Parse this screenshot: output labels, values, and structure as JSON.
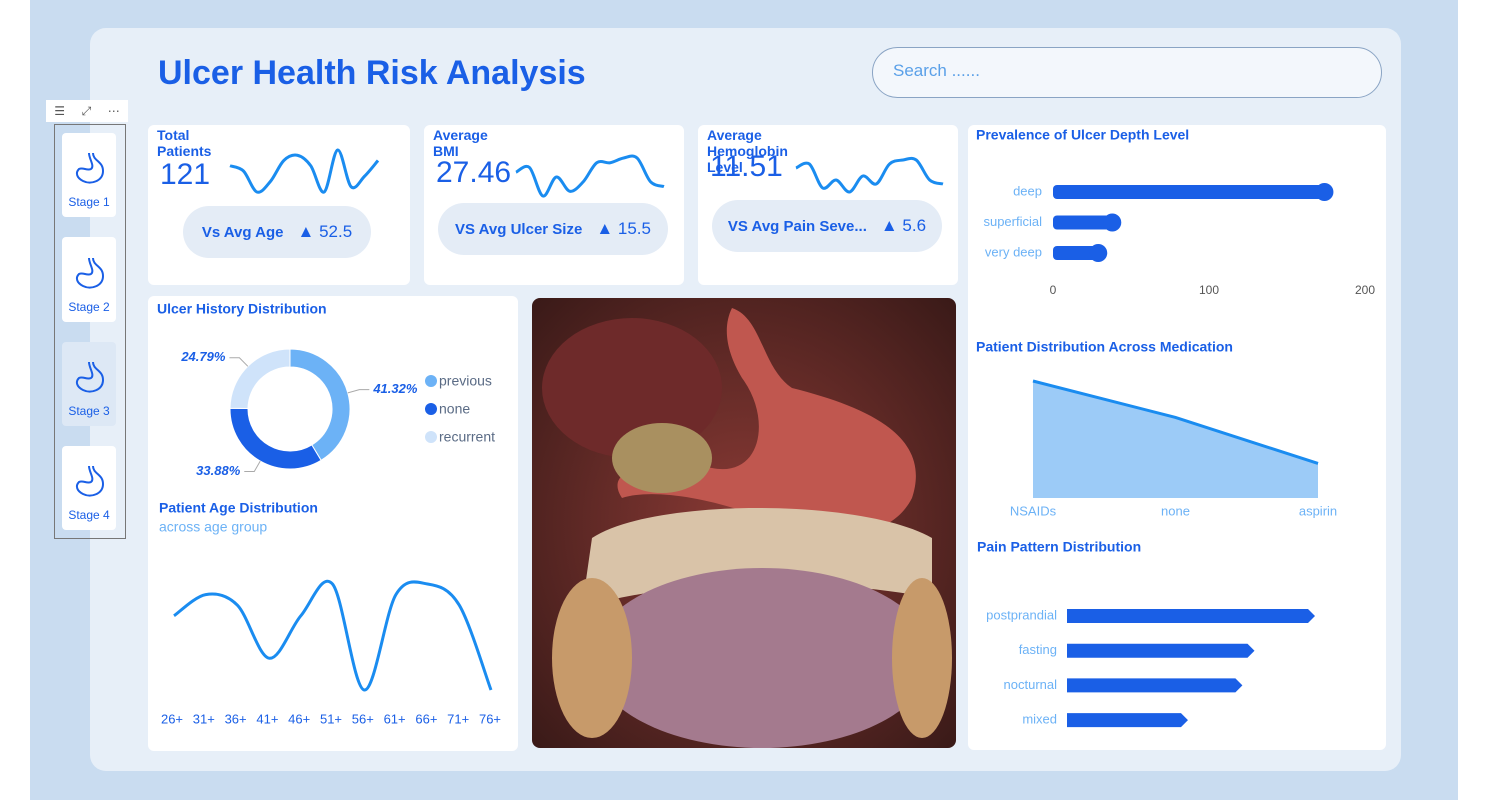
{
  "header": {
    "title": "Ulcer Health Risk Analysis",
    "search_placeholder": "Search ......"
  },
  "nav": {
    "stages": [
      "Stage 1",
      "Stage 2",
      "Stage 3",
      "Stage 4"
    ]
  },
  "kpis": [
    {
      "title": "Total Patients",
      "value": 121,
      "compare": "Vs Avg Age",
      "delta": "▲ 52.5",
      "trend": [
        6,
        5,
        1,
        3,
        7,
        8,
        6,
        1,
        9,
        2,
        4,
        7
      ]
    },
    {
      "title": "Average BMI",
      "value": 27.46,
      "compare": "VS Avg Ulcer Size",
      "delta": "▲ 15.5",
      "trend": [
        7,
        8,
        2,
        6,
        3,
        5,
        9,
        9,
        10,
        10,
        5,
        4
      ]
    },
    {
      "title": "Average Hemoglobin Level",
      "value": 11.51,
      "compare": "VS Avg Pain Seve...",
      "delta": "▲ 5.6",
      "trend": [
        8,
        9,
        3,
        5,
        2,
        6,
        4,
        9,
        10,
        10,
        5,
        4
      ]
    }
  ],
  "chart_data": [
    {
      "type": "donut",
      "title": "Ulcer History Distribution",
      "categories": [
        "previous",
        "none",
        "recurrent"
      ],
      "values": [
        41.32,
        33.88,
        24.79
      ],
      "value_labels": [
        "41.32%",
        "33.88%",
        "24.79%"
      ],
      "colors": [
        "#6cb2f6",
        "#1a5fe6",
        "#cfe3fa"
      ]
    },
    {
      "type": "line",
      "title": "Patient Age Distribution",
      "subtitle": "across age group",
      "categories": [
        "26+",
        "31+",
        "36+",
        "41+",
        "46+",
        "51+",
        "56+",
        "61+",
        "66+",
        "71+",
        "76+"
      ],
      "values": [
        12,
        14,
        13,
        8,
        12,
        15,
        5,
        14,
        15,
        13,
        5
      ],
      "color": "#1a8cf0"
    },
    {
      "type": "bar",
      "orientation": "horizontal",
      "bar_end": "round",
      "title": "Prevalence of Ulcer Depth Level",
      "categories": [
        "deep",
        "superficial",
        "very deep"
      ],
      "values": [
        174,
        38,
        29
      ],
      "xlim": [
        0,
        200
      ],
      "xticks": [
        0,
        100,
        200
      ],
      "color": "#1a5fe6"
    },
    {
      "type": "area",
      "title": "Patient Distribution Across Medication",
      "categories": [
        "NSAIDs",
        "none",
        "aspirin"
      ],
      "values": [
        61,
        42,
        18
      ],
      "color": "#1a8cf0",
      "fill": "#9ccbf7"
    },
    {
      "type": "bar",
      "orientation": "horizontal",
      "bar_end": "arrow",
      "title": "Pain Pattern Distribution",
      "categories": [
        "postprandial",
        "fasting",
        "nocturnal",
        "mixed"
      ],
      "values": [
        41,
        31,
        29,
        20
      ],
      "color": "#1a5fe6"
    }
  ]
}
